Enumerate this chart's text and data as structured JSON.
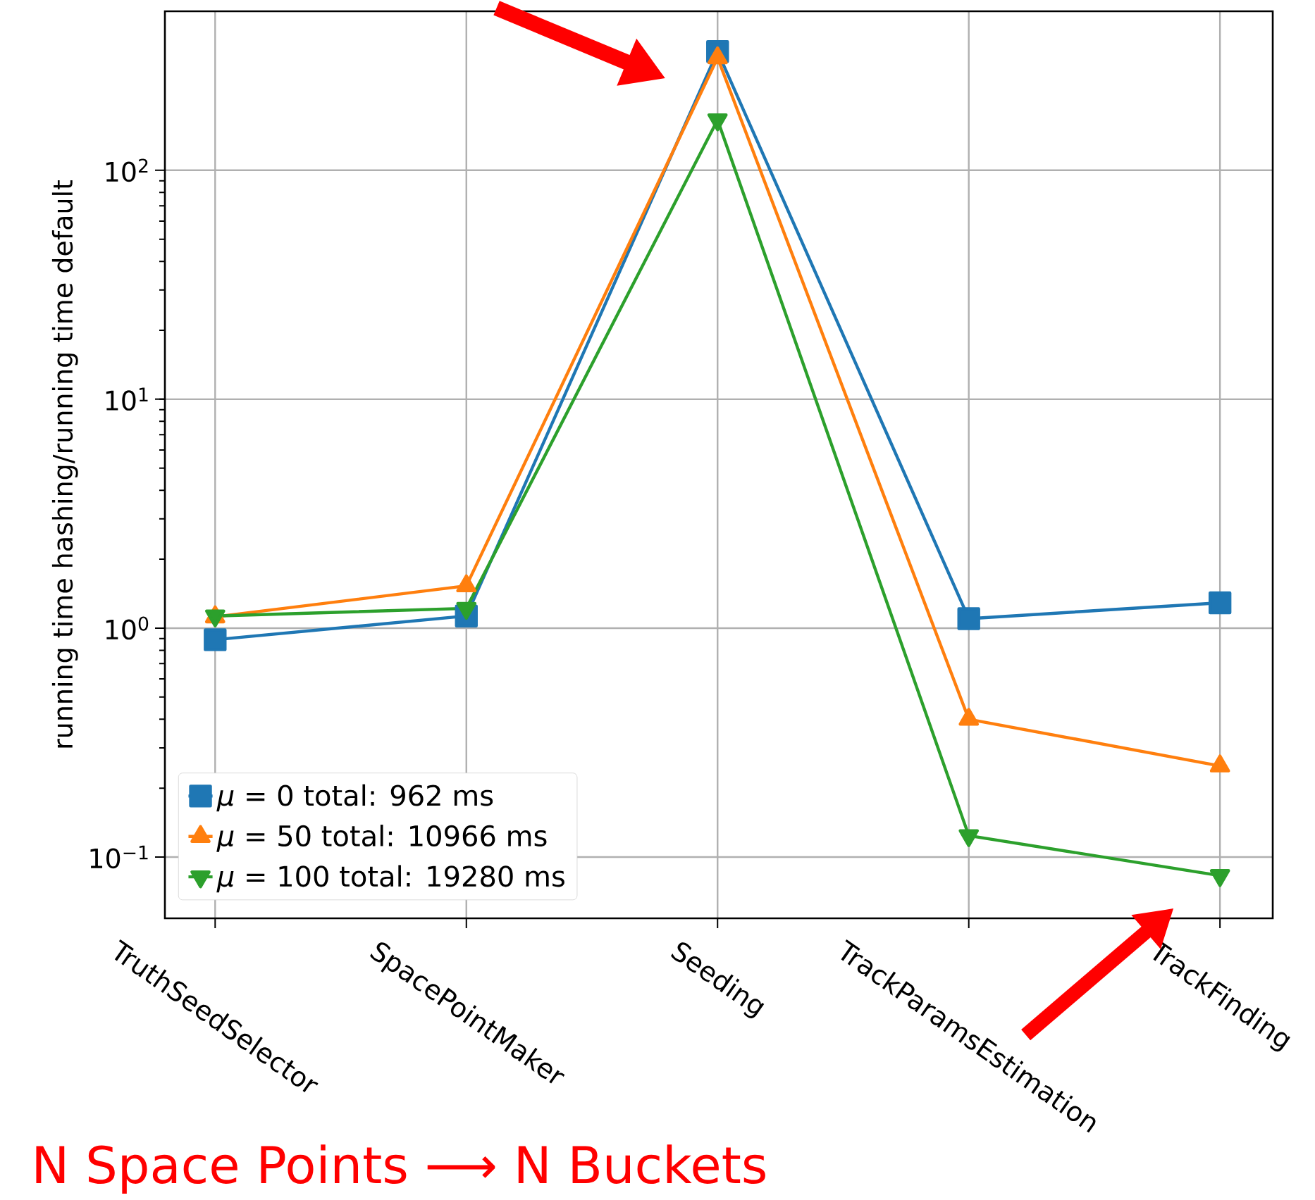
{
  "chart_data": {
    "type": "line",
    "ylabel": "running time hashing/running time default",
    "categories": [
      "TruthSeedSelector",
      "SpacePointMaker",
      "Seeding",
      "TrackParamsEstimation",
      "TrackFinding"
    ],
    "series": [
      {
        "name": "*μ* = 0 total: 962 ms",
        "color": "#1f77b4",
        "marker": "square",
        "values": [
          0.89,
          1.13,
          330,
          1.1,
          1.29
        ]
      },
      {
        "name": "*μ* = 50 total: 10966 ms",
        "color": "#ff7f0e",
        "marker": "triangle",
        "values": [
          1.12,
          1.53,
          310,
          0.4,
          0.25
        ]
      },
      {
        "name": "*μ* = 100 total: 19280 ms",
        "color": "#2ca02c",
        "marker": "triangle_down",
        "values": [
          1.13,
          1.22,
          166,
          0.124,
          0.083
        ]
      }
    ],
    "log": "y",
    "ylim": [
      0.054,
      495
    ],
    "yticks": [
      {
        "value": 0.1,
        "label": "10$^{−1}$"
      },
      {
        "value": 1,
        "label": "10$^{0}$"
      },
      {
        "value": 10,
        "label": "10$^{1}$"
      },
      {
        "value": 100,
        "label": "10$^{2}$"
      }
    ],
    "grid": true,
    "legend": "bottom left",
    "annotations": [
      "N Space Points ⟶ N Buckets"
    ]
  }
}
